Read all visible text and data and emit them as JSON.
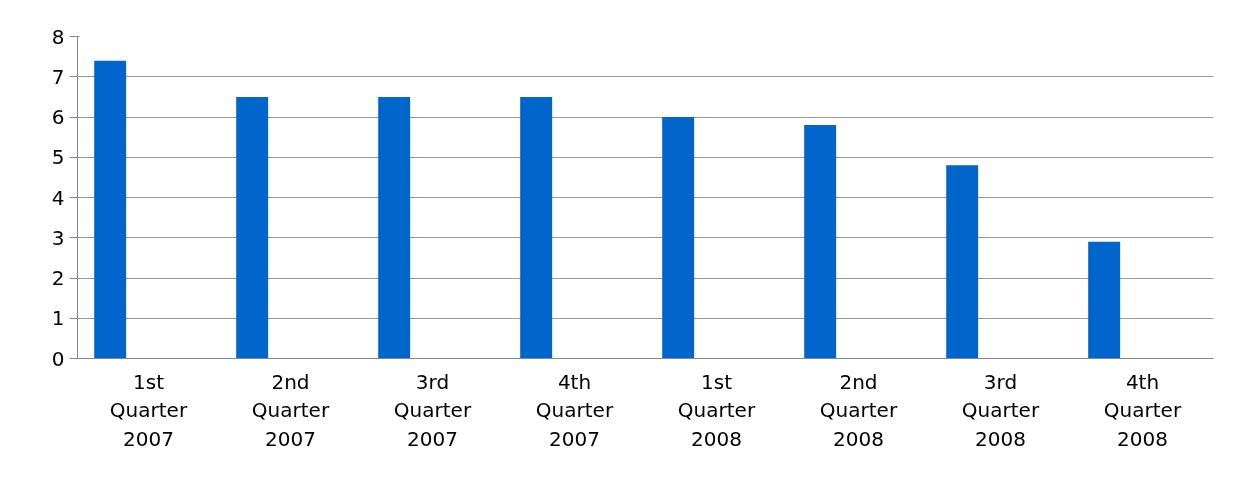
{
  "chart_data": {
    "type": "bar",
    "categories": [
      "1st\nQuarter\n2007",
      "2nd\nQuarter\n2007",
      "3rd\nQuarter\n2007",
      "4th\nQuarter\n2007",
      "1st\nQuarter\n2008",
      "2nd\nQuarter\n2008",
      "3rd\nQuarter\n2008",
      "4th\nQuarter\n2008"
    ],
    "values": [
      7.4,
      6.5,
      6.5,
      6.5,
      6.0,
      5.8,
      4.8,
      2.9
    ],
    "color": "#0066cc",
    "ylim": [
      0,
      8
    ],
    "yticks": [
      0,
      1,
      2,
      3,
      4,
      5,
      6,
      7,
      8
    ],
    "grid": "y"
  }
}
